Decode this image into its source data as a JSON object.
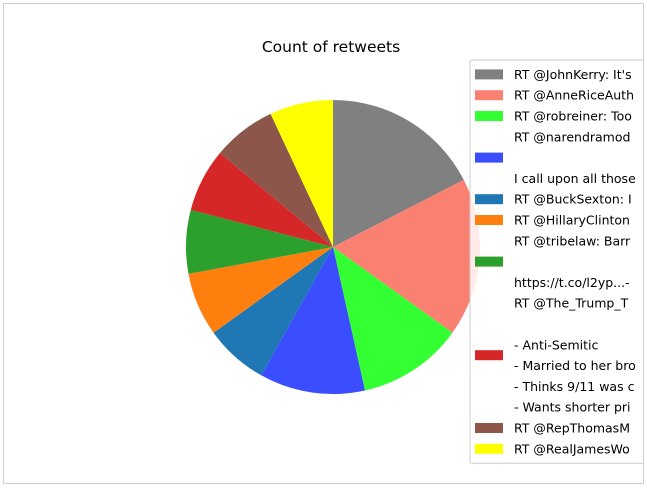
{
  "chart_data": {
    "type": "pie",
    "title": "Count of retweets",
    "startangle": 90,
    "direction": "clockwise",
    "legend_position": "right, clipped at window edge",
    "slices": [
      {
        "label_lines": [
          "RT @JohnKerry: It's"
        ],
        "value": 2,
        "color": "#808080"
      },
      {
        "label_lines": [
          "RT @AnneRiceAuth"
        ],
        "value": 2,
        "color": "#fa8072"
      },
      {
        "label_lines": [
          "RT @robreiner: Too"
        ],
        "value": 1.33,
        "color": "#33ff33"
      },
      {
        "label_lines": [
          "RT @narendramod",
          "",
          "I call upon all those"
        ],
        "value": 1.33,
        "color": "#3a4dff"
      },
      {
        "label_lines": [
          "RT @BuckSexton: I"
        ],
        "value": 0.8,
        "color": "#1f77b4"
      },
      {
        "label_lines": [
          "RT @HillaryClinton"
        ],
        "value": 0.8,
        "color": "#ff7f0e"
      },
      {
        "label_lines": [
          "RT @tribelaw: Barr",
          "",
          "https://t.co/l2yp...-"
        ],
        "value": 0.8,
        "color": "#2ca02c"
      },
      {
        "label_lines": [
          "RT @The_Trump_T",
          "",
          "- Anti-Semitic",
          "- Married to her bro",
          "- Thinks 9/11 was c",
          "- Wants shorter pri"
        ],
        "value": 0.8,
        "color": "#d62728"
      },
      {
        "label_lines": [
          "RT @RepThomasM"
        ],
        "value": 0.8,
        "color": "#8c564b"
      },
      {
        "label_lines": [
          "RT @RealJamesWo"
        ],
        "value": 0.8,
        "color": "#ffff00"
      }
    ]
  }
}
